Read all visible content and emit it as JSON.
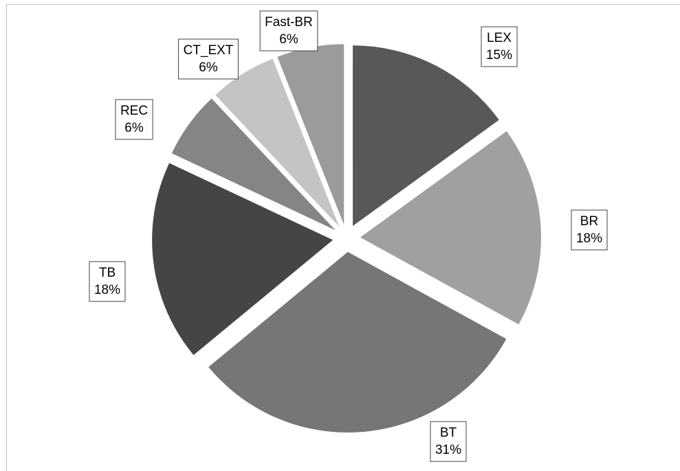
{
  "chart_data": {
    "type": "pie",
    "title": "",
    "slices": [
      {
        "label": "LEX",
        "value": 15,
        "pct_text": "15%",
        "color": "#585858"
      },
      {
        "label": "BR",
        "value": 18,
        "pct_text": "18%",
        "color": "#a0a0a0"
      },
      {
        "label": "BT",
        "value": 31,
        "pct_text": "31%",
        "color": "#767676"
      },
      {
        "label": "TB",
        "value": 18,
        "pct_text": "18%",
        "color": "#454545"
      },
      {
        "label": "REC",
        "value": 6,
        "pct_text": "6%",
        "color": "#858585"
      },
      {
        "label": "CT_EXT",
        "value": 6,
        "pct_text": "6%",
        "color": "#c4c4c4"
      },
      {
        "label": "Fast-BR",
        "value": 6,
        "pct_text": "6%",
        "color": "#9b9b9b"
      }
    ],
    "exploded": true,
    "legend": "none",
    "data_labels": "boxed outside"
  }
}
